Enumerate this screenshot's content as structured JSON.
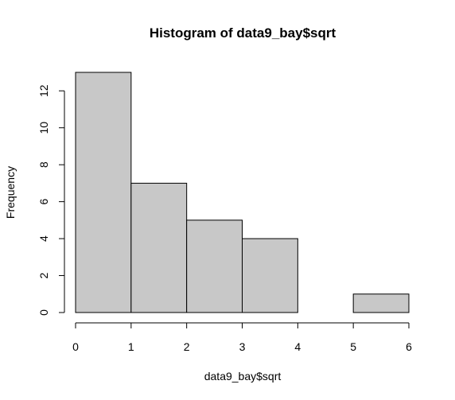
{
  "chart_data": {
    "type": "bar",
    "title": "Histogram of data9_bay$sqrt",
    "xlabel": "data9_bay$sqrt",
    "ylabel": "Frequency",
    "bins": [
      {
        "from": 0,
        "to": 1,
        "count": 13
      },
      {
        "from": 1,
        "to": 2,
        "count": 7
      },
      {
        "from": 2,
        "to": 3,
        "count": 5
      },
      {
        "from": 3,
        "to": 4,
        "count": 4
      },
      {
        "from": 4,
        "to": 5,
        "count": 0
      },
      {
        "from": 5,
        "to": 6,
        "count": 1
      }
    ],
    "xlim": [
      0,
      6
    ],
    "ylim": [
      0,
      13
    ],
    "xticks": [
      "0",
      "1",
      "2",
      "3",
      "4",
      "5",
      "6"
    ],
    "yticks": [
      "0",
      "2",
      "4",
      "6",
      "8",
      "10",
      "12"
    ],
    "grid": false,
    "bar_color": "#c8c8c8",
    "edge_color": "#000000"
  }
}
